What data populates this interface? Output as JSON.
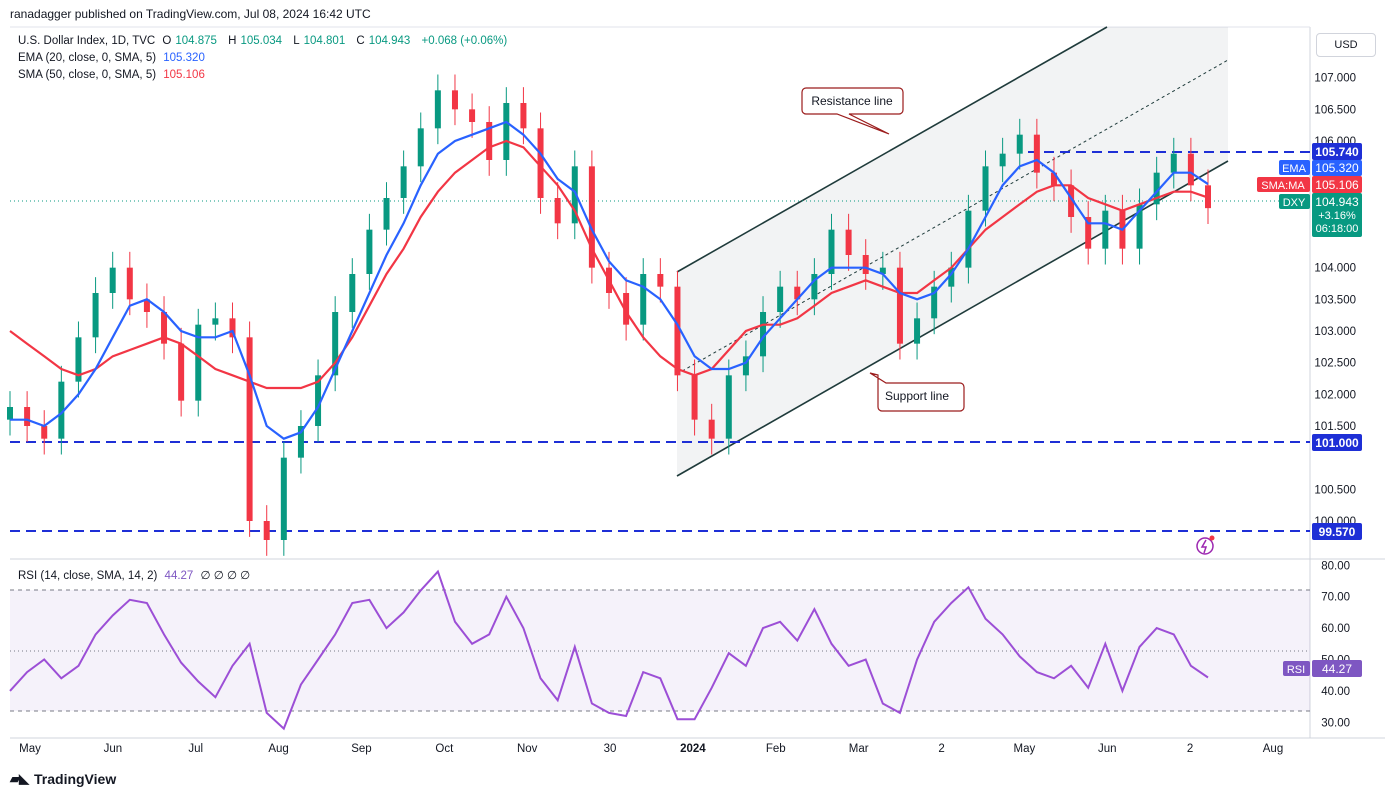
{
  "publisher": "ranadagger published on TradingView.com, Jul 08, 2024 16:42 UTC",
  "brand": "TradingView",
  "currency_button": "USD",
  "legend": {
    "symbol": "U.S. Dollar Index, 1D, TVC",
    "open_label": "O",
    "open": "104.875",
    "high_label": "H",
    "high": "105.034",
    "low_label": "L",
    "low": "104.801",
    "close_label": "C",
    "close": "104.943",
    "change": "+0.068 (+0.06%)",
    "ema_label": "EMA (20, close, 0, SMA, 5)",
    "ema_value": "105.320",
    "sma_label": "SMA (50, close, 0, SMA, 5)",
    "sma_value": "105.106",
    "rsi_label": "RSI (14, close, SMA, 14, 2)",
    "rsi_value": "44.27",
    "rsi_extra": "∅ ∅ ∅ ∅"
  },
  "colors": {
    "up": "#089981",
    "down": "#f23645",
    "ema": "#2962ff",
    "sma": "#f23645",
    "rsi": "#9c4fd6",
    "level": "#1e2fd6",
    "channel": "#1f3b3b",
    "annotation": "#9b1c1c"
  },
  "annotations": {
    "resistance": "Resistance line",
    "support": "Support line"
  },
  "price_axis": {
    "ticks": [
      "107.000",
      "106.500",
      "106.000",
      "104.000",
      "103.500",
      "103.000",
      "102.500",
      "102.000",
      "101.500",
      "100.500",
      "100.000"
    ],
    "tick_values": [
      107.0,
      106.5,
      106.0,
      104.0,
      103.5,
      103.0,
      102.5,
      102.0,
      101.5,
      100.5,
      100.0
    ],
    "ylim": [
      99.4,
      107.8
    ]
  },
  "labels": {
    "level_1": "105.740",
    "ema_tag": "EMA",
    "ema_val": "105.320",
    "sma_tag": "SMA:MA",
    "sma_val": "105.106",
    "dxy_tag": "DXY",
    "dxy_val": "104.943",
    "dxy_pct": "+3.16%",
    "dxy_time": "06:18:00",
    "level_2": "101.000",
    "level_3": "99.570",
    "rsi_tag": "RSI",
    "rsi_val": "44.27"
  },
  "rsi_axis": {
    "ticks": [
      "80.00",
      "70.00",
      "60.00",
      "50.00",
      "40.00",
      "30.00"
    ],
    "tick_values": [
      80,
      70,
      60,
      50,
      40,
      30
    ],
    "ylim": [
      25,
      82
    ]
  },
  "time_axis": [
    "May",
    "Jun",
    "Jul",
    "Aug",
    "Sep",
    "Oct",
    "Nov",
    "30",
    "2024",
    "Feb",
    "Mar",
    "2",
    "May",
    "Jun",
    "2",
    "Aug"
  ],
  "chart_data": {
    "type": "candlestick",
    "title": "U.S. Dollar Index, 1D, TVC",
    "horizontal_levels": [
      105.74,
      101.0,
      99.57
    ],
    "series": [
      {
        "name": "Close",
        "values": [
          101.8,
          101.5,
          101.3,
          102.2,
          102.9,
          103.6,
          104.0,
          103.5,
          103.3,
          102.8,
          101.9,
          103.1,
          103.2,
          102.9,
          100.0,
          99.7,
          101.0,
          101.5,
          102.3,
          103.3,
          103.9,
          104.6,
          105.1,
          105.6,
          106.2,
          106.8,
          106.5,
          106.3,
          105.7,
          106.6,
          106.2,
          105.1,
          104.7,
          105.6,
          104.0,
          103.6,
          103.1,
          103.9,
          103.7,
          102.3,
          101.6,
          101.3,
          102.3,
          102.6,
          103.3,
          103.7,
          103.5,
          103.9,
          104.6,
          104.2,
          103.9,
          104.0,
          102.8,
          103.2,
          103.7,
          104.0,
          104.9,
          105.6,
          105.8,
          106.1,
          105.5,
          105.3,
          104.8,
          104.3,
          104.9,
          104.3,
          105.0,
          105.5,
          105.8,
          105.3,
          104.94
        ]
      },
      {
        "name": "EMA 20",
        "values": [
          101.6,
          101.6,
          101.5,
          101.7,
          102.0,
          102.4,
          102.9,
          103.4,
          103.5,
          103.3,
          103.0,
          102.9,
          102.9,
          103.0,
          102.3,
          101.5,
          101.3,
          101.4,
          101.8,
          102.4,
          103.0,
          103.6,
          104.2,
          104.7,
          105.3,
          105.8,
          106.0,
          106.1,
          106.2,
          106.3,
          106.1,
          105.8,
          105.4,
          105.2,
          104.6,
          104.1,
          103.8,
          103.7,
          103.5,
          103.1,
          102.6,
          102.4,
          102.4,
          102.5,
          102.9,
          103.2,
          103.5,
          103.8,
          104.0,
          104.0,
          104.0,
          103.9,
          103.6,
          103.5,
          103.6,
          103.9,
          104.3,
          104.8,
          105.3,
          105.6,
          105.7,
          105.5,
          105.1,
          104.7,
          104.7,
          104.6,
          104.9,
          105.2,
          105.5,
          105.5,
          105.32
        ]
      },
      {
        "name": "SMA 50",
        "values": [
          103.0,
          102.8,
          102.6,
          102.4,
          102.3,
          102.4,
          102.6,
          102.7,
          102.8,
          102.9,
          102.8,
          102.6,
          102.4,
          102.3,
          102.2,
          102.1,
          102.1,
          102.1,
          102.2,
          102.5,
          102.9,
          103.4,
          103.9,
          104.3,
          104.8,
          105.2,
          105.5,
          105.7,
          105.9,
          106.0,
          105.9,
          105.6,
          105.3,
          104.9,
          104.3,
          103.8,
          103.3,
          102.9,
          102.6,
          102.4,
          102.3,
          102.4,
          102.7,
          103.0,
          103.1,
          103.1,
          103.2,
          103.4,
          103.6,
          103.7,
          103.8,
          103.7,
          103.6,
          103.6,
          103.8,
          104.0,
          104.3,
          104.6,
          104.8,
          105.0,
          105.2,
          105.3,
          105.3,
          105.1,
          105.0,
          104.9,
          105.0,
          105.1,
          105.2,
          105.2,
          105.106
        ]
      },
      {
        "name": "RSI 14",
        "values": [
          40,
          46,
          50,
          44,
          48,
          58,
          64,
          69,
          68,
          58,
          49,
          43,
          38,
          48,
          55,
          33,
          28,
          42,
          50,
          58,
          68,
          69,
          60,
          65,
          72,
          78,
          62,
          55,
          58,
          70,
          60,
          44,
          37,
          54,
          36,
          33,
          32,
          46,
          44,
          31,
          31,
          41,
          52,
          48,
          60,
          62,
          56,
          66,
          55,
          48,
          50,
          36,
          33,
          50,
          62,
          68,
          73,
          63,
          58,
          51,
          46,
          44,
          48,
          41,
          55,
          40,
          54,
          60,
          58,
          48,
          44.27
        ]
      }
    ],
    "xlim": [
      "2023-04-24",
      "2024-08-20"
    ],
    "ylim": [
      99.4,
      107.8
    ]
  }
}
